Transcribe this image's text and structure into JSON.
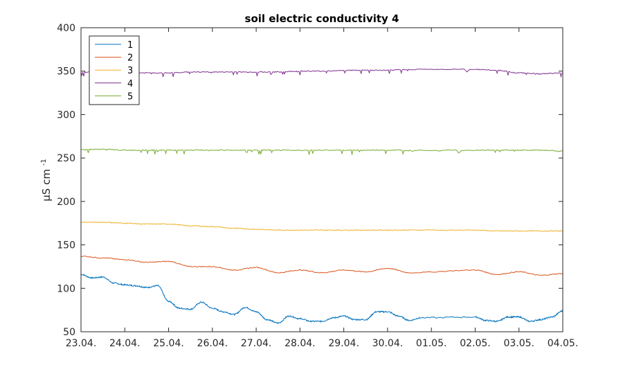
{
  "chart_data": {
    "type": "line",
    "title": "soil electric conductivity 4",
    "xlabel": "",
    "ylabel_main": "µS cm",
    "ylabel_sup": "-1",
    "ylim": [
      50,
      400
    ],
    "yticks": [
      50,
      100,
      150,
      200,
      250,
      300,
      350,
      400
    ],
    "xlim": [
      "2023-04-23",
      "2023-05-04"
    ],
    "xtick_labels": [
      "23.04.",
      "24.04.",
      "25.04.",
      "26.04.",
      "27.04.",
      "28.04.",
      "29.04.",
      "30.04.",
      "01.05.",
      "02.05.",
      "03.05.",
      "04.05."
    ],
    "grid": false,
    "legend_position": "top-left",
    "series": [
      {
        "name": "1",
        "color": "#0072BD",
        "x": [
          "23.04.",
          "23.25",
          "23.5",
          "23.75",
          "24.04.",
          "24.25",
          "24.5",
          "24.75",
          "25.04.",
          "25.25",
          "25.5",
          "25.75",
          "26.04.",
          "26.25",
          "26.5",
          "26.75",
          "27.04.",
          "27.25",
          "27.5",
          "27.75",
          "28.04.",
          "28.25",
          "28.5",
          "28.75",
          "29.04.",
          "29.25",
          "29.5",
          "29.75",
          "30.04.",
          "30.25",
          "30.5",
          "30.75",
          "01.05.",
          "01.25",
          "01.5",
          "01.75",
          "02.05.",
          "02.25",
          "02.5",
          "02.75",
          "03.05."
        ],
        "values": [
          116,
          112,
          113,
          106,
          104,
          103,
          101,
          103,
          85,
          77,
          76,
          84,
          77,
          73,
          70,
          78,
          73,
          64,
          60,
          68,
          65,
          62,
          62,
          66,
          68,
          64,
          64,
          73,
          73,
          68,
          63,
          66,
          67,
          63,
          62,
          67,
          67,
          62,
          64,
          67,
          74
        ]
      },
      {
        "name": "2",
        "color": "#D95319",
        "x": [
          "23.04.",
          "23.5",
          "24.04.",
          "24.5",
          "25.04.",
          "25.5",
          "26.04.",
          "26.5",
          "27.04.",
          "27.5",
          "28.04.",
          "28.5",
          "29.04.",
          "29.5",
          "30.04.",
          "30.5",
          "01.05.",
          "01.5",
          "02.05.",
          "02.5",
          "03.05."
        ],
        "values": [
          137,
          135,
          133,
          130,
          131,
          125,
          125,
          121,
          124,
          118,
          121,
          118,
          121,
          119,
          123,
          118,
          121,
          116,
          119,
          115,
          117
        ]
      },
      {
        "name": "3",
        "color": "#EDB120",
        "x": [
          "23.04.",
          "23.5",
          "24.04.",
          "24.5",
          "25.04.",
          "25.5",
          "26.04.",
          "26.5",
          "27.04.",
          "27.5",
          "28.04.",
          "28.5",
          "29.04.",
          "29.5",
          "30.04.",
          "30.5",
          "01.05.",
          "01.5",
          "02.05.",
          "02.5",
          "03.05."
        ],
        "values": [
          176,
          176,
          175,
          174,
          174,
          172,
          171,
          169,
          168,
          167,
          167,
          167,
          167,
          167,
          167,
          167,
          167,
          166,
          166,
          166,
          166
        ]
      },
      {
        "name": "4",
        "color": "#7E2F8E",
        "x": [
          "23.04.",
          "23.5",
          "24.04.",
          "24.5",
          "25.04.",
          "25.5",
          "26.04.",
          "26.5",
          "27.04.",
          "27.5",
          "28.04.",
          "28.5",
          "29.04.",
          "29.5",
          "30.04.",
          "30.5",
          "01.05.",
          "01.5",
          "02.05.",
          "02.5",
          "03.05."
        ],
        "values": [
          349,
          349,
          348,
          348,
          348,
          349,
          349,
          349,
          349,
          349,
          350,
          350,
          351,
          351,
          351,
          352,
          352,
          351,
          348,
          347,
          348
        ]
      },
      {
        "name": "5",
        "color": "#77AC30",
        "x": [
          "23.04.",
          "23.5",
          "24.04.",
          "24.5",
          "25.04.",
          "25.5",
          "26.04.",
          "26.5",
          "27.04.",
          "27.5",
          "28.04.",
          "28.5",
          "29.04.",
          "29.5",
          "30.04.",
          "30.5",
          "01.05.",
          "01.5",
          "02.05.",
          "02.5",
          "03.05."
        ],
        "values": [
          260,
          260,
          259,
          259,
          259,
          259,
          259,
          259,
          259,
          259,
          259,
          259,
          259,
          259,
          259,
          259,
          259,
          259,
          259,
          259,
          258
        ]
      }
    ]
  }
}
